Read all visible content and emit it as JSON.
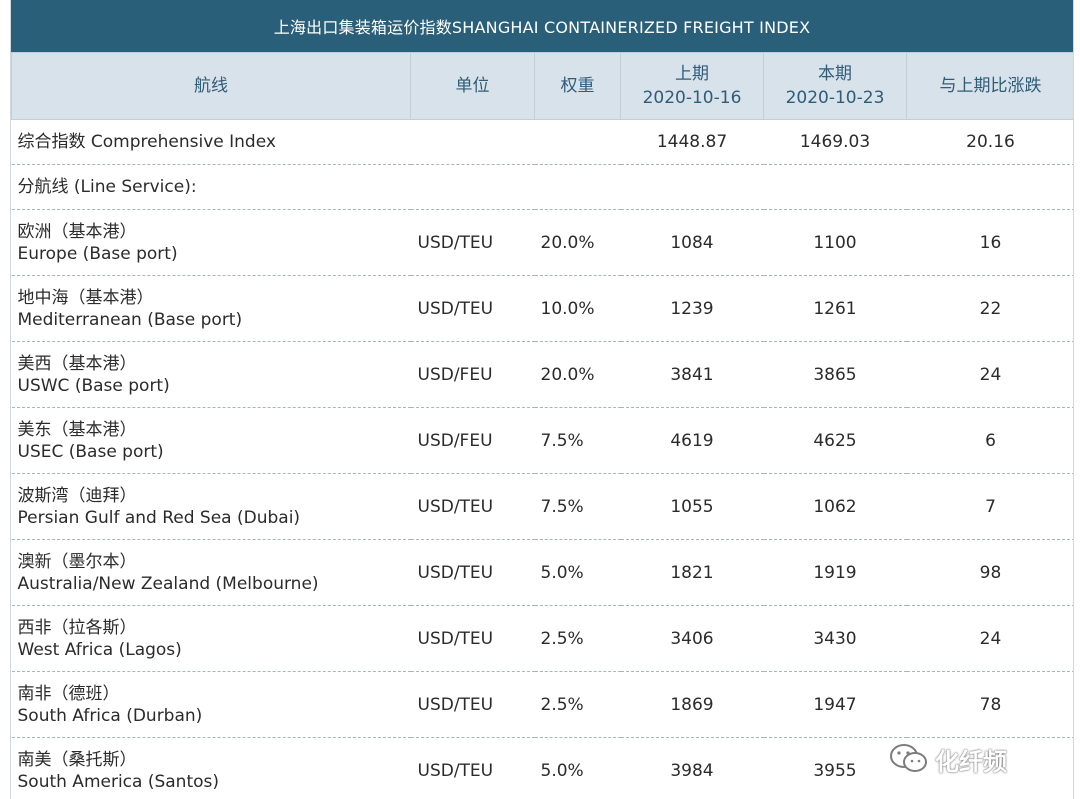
{
  "title": "上海出口集装箱运价指数SHANGHAI CONTAINERIZED FREIGHT INDEX",
  "headers": {
    "route": "航线",
    "unit": "单位",
    "weight": "权重",
    "prev_label": "上期",
    "prev_date": "2020-10-16",
    "curr_label": "本期",
    "curr_date": "2020-10-23",
    "change": "与上期比涨跌"
  },
  "summary": {
    "name": "综合指数 Comprehensive Index",
    "prev": "1448.87",
    "curr": "1469.03",
    "change": "20.16"
  },
  "section_label": "分航线 (Line Service):",
  "rows": [
    {
      "cn": "欧洲（基本港）",
      "en": "Europe (Base port)",
      "unit": "USD/TEU",
      "weight": "20.0%",
      "prev": "1084",
      "curr": "1100",
      "change": "16"
    },
    {
      "cn": "地中海（基本港）",
      "en": "Mediterranean (Base port)",
      "unit": "USD/TEU",
      "weight": "10.0%",
      "prev": "1239",
      "curr": "1261",
      "change": "22"
    },
    {
      "cn": "美西（基本港）",
      "en": "USWC (Base port)",
      "unit": "USD/FEU",
      "weight": "20.0%",
      "prev": "3841",
      "curr": "3865",
      "change": "24"
    },
    {
      "cn": "美东（基本港）",
      "en": "USEC (Base port)",
      "unit": "USD/FEU",
      "weight": "7.5%",
      "prev": "4619",
      "curr": "4625",
      "change": "6"
    },
    {
      "cn": "波斯湾（迪拜）",
      "en": "Persian Gulf and Red Sea (Dubai)",
      "unit": "USD/TEU",
      "weight": "7.5%",
      "prev": "1055",
      "curr": "1062",
      "change": "7"
    },
    {
      "cn": "澳新（墨尔本）",
      "en": "Australia/New Zealand (Melbourne)",
      "unit": "USD/TEU",
      "weight": "5.0%",
      "prev": "1821",
      "curr": "1919",
      "change": "98"
    },
    {
      "cn": "西非（拉各斯）",
      "en": "West Africa (Lagos)",
      "unit": "USD/TEU",
      "weight": "2.5%",
      "prev": "3406",
      "curr": "3430",
      "change": "24"
    },
    {
      "cn": "南非（德班）",
      "en": "South Africa (Durban)",
      "unit": "USD/TEU",
      "weight": "2.5%",
      "prev": "1869",
      "curr": "1947",
      "change": "78"
    },
    {
      "cn": "南美（桑托斯）",
      "en": "South America (Santos)",
      "unit": "USD/TEU",
      "weight": "5.0%",
      "prev": "3984",
      "curr": "3955",
      "change": ""
    }
  ],
  "watermark": {
    "text": "化纤频",
    "icon": "wechat-icon"
  }
}
